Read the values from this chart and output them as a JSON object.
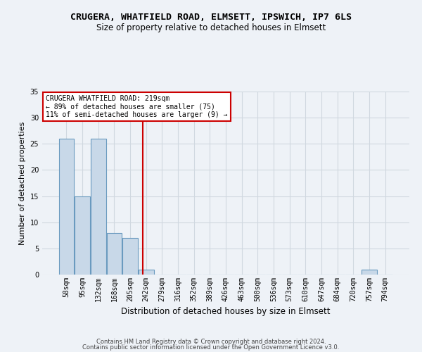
{
  "title": "CRUGERA, WHATFIELD ROAD, ELMSETT, IPSWICH, IP7 6LS",
  "subtitle": "Size of property relative to detached houses in Elmsett",
  "xlabel": "Distribution of detached houses by size in Elmsett",
  "ylabel": "Number of detached properties",
  "footer1": "Contains HM Land Registry data © Crown copyright and database right 2024.",
  "footer2": "Contains public sector information licensed under the Open Government Licence v3.0.",
  "bin_labels": [
    "58sqm",
    "95sqm",
    "132sqm",
    "168sqm",
    "205sqm",
    "242sqm",
    "279sqm",
    "316sqm",
    "352sqm",
    "389sqm",
    "426sqm",
    "463sqm",
    "500sqm",
    "536sqm",
    "573sqm",
    "610sqm",
    "647sqm",
    "684sqm",
    "720sqm",
    "757sqm",
    "794sqm"
  ],
  "bar_values": [
    26,
    15,
    26,
    8,
    7,
    1,
    0,
    0,
    0,
    0,
    0,
    0,
    0,
    0,
    0,
    0,
    0,
    0,
    0,
    1,
    0
  ],
  "bar_color": "#c8d8e8",
  "bar_edge_color": "#6a9abf",
  "red_line_x": 4.77,
  "annotation_text": "CRUGERA WHATFIELD ROAD: 219sqm\n← 89% of detached houses are smaller (75)\n11% of semi-detached houses are larger (9) →",
  "annotation_box_color": "#ffffff",
  "annotation_box_edge": "#cc0000",
  "red_line_color": "#cc0000",
  "ylim": [
    0,
    35
  ],
  "yticks": [
    0,
    5,
    10,
    15,
    20,
    25,
    30,
    35
  ],
  "grid_color": "#d0d8e0",
  "background_color": "#eef2f7",
  "title_fontsize": 9.5,
  "subtitle_fontsize": 8.5,
  "ylabel_fontsize": 8,
  "xlabel_fontsize": 8.5,
  "tick_fontsize": 7,
  "annotation_fontsize": 7,
  "footer_fontsize": 6
}
